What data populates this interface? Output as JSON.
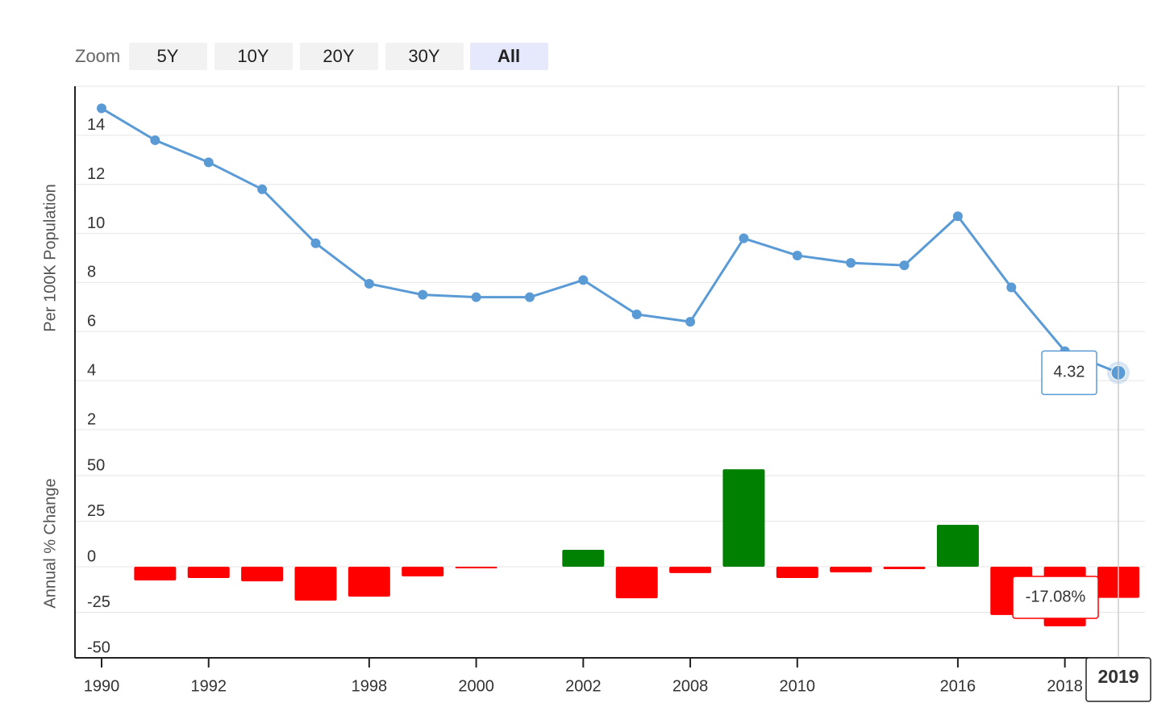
{
  "zoom": {
    "label": "Zoom",
    "buttons": [
      "5Y",
      "10Y",
      "20Y",
      "30Y",
      "All"
    ],
    "selected": 4
  },
  "chart_data": [
    {
      "type": "line",
      "y_label": "Per 100K Population",
      "categories": [
        "1990",
        null,
        "1992",
        null,
        null,
        "1998",
        null,
        "2000",
        null,
        "2002",
        null,
        "2008",
        null,
        "2010",
        null,
        null,
        "2016",
        null,
        "2018",
        "2019"
      ],
      "values": [
        15.1,
        13.8,
        12.9,
        11.8,
        9.6,
        7.95,
        7.5,
        7.4,
        7.4,
        8.1,
        6.7,
        6.4,
        9.8,
        9.1,
        8.8,
        8.7,
        10.7,
        7.8,
        5.2,
        4.32
      ],
      "color": "#5b9bd5",
      "ylim": [
        2,
        16
      ],
      "yticks": [
        2,
        4,
        6,
        8,
        10,
        12,
        14
      ],
      "grid": true
    },
    {
      "type": "bar",
      "y_label": "Annual % Change",
      "values": [
        null,
        -7.5,
        -6.2,
        -8,
        -18.6,
        -16.4,
        -5.3,
        -0.9,
        null,
        9.3,
        -17.3,
        -3.5,
        53.5,
        -6.2,
        -3.1,
        -1.3,
        23,
        -26.5,
        -32.7,
        -17.08
      ],
      "value_labels": [
        null,
        null,
        null,
        null,
        null,
        null,
        null,
        null,
        null,
        null,
        null,
        null,
        null,
        null,
        null,
        null,
        null,
        null,
        null,
        "-17.08%"
      ],
      "positive_color": "#008000",
      "negative_color": "#ff0000",
      "ylim": [
        -50,
        50
      ],
      "yticks": [
        -50,
        -25,
        0,
        25,
        50
      ],
      "grid": true
    }
  ]
}
